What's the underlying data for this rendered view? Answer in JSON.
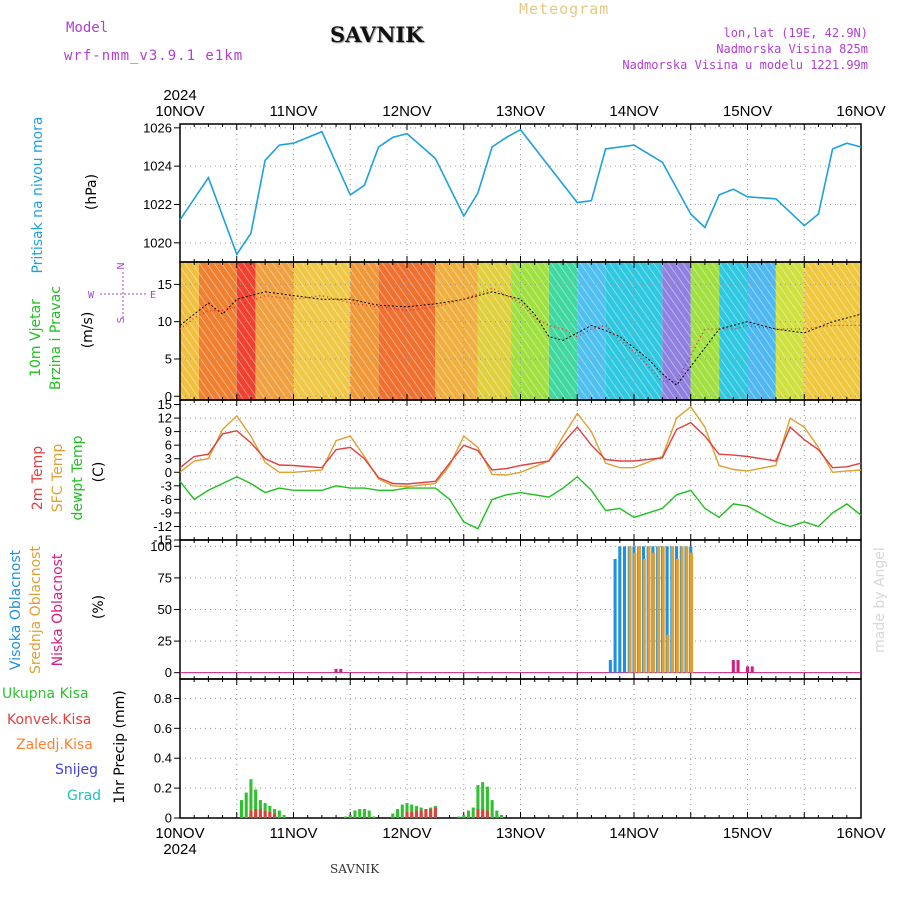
{
  "header": {
    "model_label": "Model",
    "model_name": "wrf-nmm_v3.9.1  e1km",
    "station": "SAVNIK",
    "title": "Meteogram",
    "coords": "lon,lat (19E, 42.9N)",
    "elevation": "Nadmorska Visina 825m",
    "model_elevation": "Nadmorska Visina u modelu 1221.99m"
  },
  "footer": {
    "station": "SAVNIK",
    "credit": "made by Angel",
    "year": "2024"
  },
  "time_axis": {
    "labels": [
      "10NOV",
      "11NOV",
      "12NOV",
      "13NOV",
      "14NOV",
      "15NOV",
      "16NOV"
    ]
  },
  "panels": {
    "pressure": {
      "labels": [
        "Pritisak na nivou mora",
        "(hPa)"
      ]
    },
    "wind": {
      "labels": [
        "10m Vjetar",
        "Brzina i Pravac",
        "(m/s)"
      ],
      "compass": {
        "w": "W",
        "e": "E",
        "n": "N",
        "s": "S"
      }
    },
    "temp": {
      "labels": [
        "2m Temp",
        "SFC Temp",
        "dewpt Temp",
        "(C)"
      ]
    },
    "cloud": {
      "labels": [
        "Visoka Oblacnost",
        "Srednja Oblacnost",
        "Niska Oblacnost",
        "(%)"
      ]
    },
    "precip": {
      "labels": [
        "Ukupna Kisa",
        "Konvek.Kisa",
        "Zaledj.Kisa",
        "Snijeg",
        "Grad",
        "1hr Precip (mm)"
      ]
    }
  },
  "colors": {
    "pressure": "#1ea0e0",
    "t2m": "#e04040",
    "tsfc": "#e0a030",
    "dew": "#20c020",
    "high_cloud": "#1e90e0",
    "mid_cloud": "#e0a030",
    "low_cloud": "#d02080",
    "total_rain": "#30c030",
    "conv_rain": "#e04040",
    "frz_rain": "#ff8030",
    "snow": "#4040e0",
    "hail": "#20c0c0"
  },
  "chart_data": [
    {
      "type": "line",
      "title": "Pritisak na nivou mora",
      "ylabel": "(hPa)",
      "ylim": [
        1019,
        1026.2
      ],
      "yticks": [
        1020,
        1022,
        1024,
        1026
      ],
      "x": [
        0,
        6,
        12,
        15,
        18,
        21,
        24,
        30,
        36,
        39,
        42,
        45,
        48,
        54,
        60,
        63,
        66,
        69,
        72,
        78,
        84,
        87,
        90,
        93,
        96,
        102,
        108,
        111,
        114,
        117,
        120,
        126,
        132,
        135,
        138,
        141,
        144
      ],
      "series": [
        {
          "values": [
            1021.2,
            1023.4,
            1019.4,
            1020.5,
            1024.3,
            1025.1,
            1025.2,
            1025.8,
            1022.5,
            1023,
            1025,
            1025.5,
            1025.7,
            1024.4,
            1021.4,
            1022.6,
            1025,
            1025.5,
            1025.9,
            1024,
            1022.1,
            1022.2,
            1024.9,
            1025,
            1025.1,
            1024.2,
            1021.5,
            1020.8,
            1022.5,
            1022.8,
            1022.4,
            1022.3,
            1020.9,
            1021.5,
            1024.9,
            1025.2,
            1025
          ]
        }
      ]
    },
    {
      "type": "line",
      "title": "10m Vjetar Brzina i Pravac",
      "ylabel": "(m/s)",
      "ylim": [
        -0.5,
        18
      ],
      "yticks": [
        0,
        5,
        10,
        15
      ],
      "x": [
        0,
        3,
        6,
        9,
        12,
        18,
        24,
        30,
        36,
        42,
        48,
        54,
        60,
        66,
        72,
        75,
        78,
        81,
        84,
        87,
        90,
        93,
        96,
        99,
        102,
        105,
        108,
        111,
        114,
        117,
        120,
        126,
        132,
        138,
        144
      ],
      "series": [
        {
          "values": [
            9.5,
            11,
            12.5,
            11,
            13,
            14,
            13.5,
            13,
            13,
            12.2,
            12,
            12.4,
            13,
            14,
            13,
            11,
            8,
            7.5,
            8.5,
            9.5,
            8.8,
            8,
            6.5,
            5,
            3,
            1.5,
            4,
            6.5,
            9,
            9.5,
            10,
            9,
            8.5,
            10,
            11
          ]
        },
        {
          "values": [
            9,
            10.5,
            11.5,
            11.5,
            12,
            13.5,
            13,
            13.5,
            12.5,
            12,
            11.5,
            12,
            13,
            14.5,
            12.5,
            10.5,
            9.5,
            9,
            8,
            9,
            9.5,
            7.5,
            6,
            4,
            2,
            2,
            5.5,
            9,
            9,
            9,
            9.5,
            9,
            9,
            9.5,
            9.5
          ]
        }
      ]
    },
    {
      "type": "line",
      "title": "",
      "ylabel": "(C)",
      "ylim": [
        -15,
        16
      ],
      "yticks": [
        -15,
        -12,
        -9,
        -6,
        -3,
        0,
        3,
        6,
        9,
        12,
        15
      ],
      "x": [
        0,
        3,
        6,
        9,
        12,
        15,
        18,
        21,
        24,
        30,
        33,
        36,
        39,
        42,
        45,
        48,
        54,
        57,
        60,
        63,
        66,
        69,
        72,
        78,
        81,
        84,
        87,
        90,
        93,
        96,
        102,
        105,
        108,
        111,
        114,
        117,
        120,
        126,
        129,
        132,
        135,
        138,
        141,
        144
      ],
      "series": [
        {
          "values": [
            1,
            3.5,
            4,
            8.5,
            9.2,
            6.5,
            3,
            1.6,
            1.5,
            1,
            5,
            5.5,
            3,
            -1.2,
            -2.5,
            -2.6,
            -2,
            2,
            6,
            4.8,
            0.5,
            0.8,
            1.5,
            2.5,
            6.5,
            10,
            6,
            2.8,
            2.5,
            2.5,
            3.2,
            9.5,
            11,
            8,
            4,
            3.8,
            3.5,
            2.5,
            10,
            7.2,
            5,
            1,
            1.2,
            2
          ]
        },
        {
          "values": [
            0,
            2.5,
            3,
            9.5,
            12.5,
            8,
            2.2,
            0,
            0,
            0.5,
            7,
            8,
            3.5,
            -1.5,
            -3,
            -3.2,
            -2.5,
            1.5,
            8,
            5.5,
            -0.5,
            -0.6,
            0,
            2.5,
            8,
            13,
            9,
            2,
            1,
            1,
            3.5,
            12,
            14.5,
            10,
            1.5,
            0.6,
            0.3,
            1.5,
            12,
            10,
            5.5,
            0,
            0.3,
            0.5
          ]
        },
        {
          "values": [
            -2,
            -6,
            -4,
            -2.5,
            -1,
            -2.5,
            -4.5,
            -3.5,
            -4,
            -4,
            -3,
            -3.5,
            -3.5,
            -4,
            -4,
            -3.5,
            -3.5,
            -6,
            -11,
            -12.5,
            -6,
            -5,
            -4.5,
            -5.5,
            -3.5,
            -1,
            -4,
            -8.5,
            -8,
            -10,
            -8,
            -5,
            -4,
            -8,
            -10,
            -7,
            -7.5,
            -11,
            -12,
            -11,
            -12,
            -9,
            -7,
            -9.5
          ]
        }
      ]
    },
    {
      "type": "bar",
      "title": "Oblacnost",
      "ylabel": "(%)",
      "ylim": [
        -5,
        105
      ],
      "yticks": [
        0,
        25,
        50,
        75,
        100
      ],
      "series": [
        {
          "name": "Visoka Oblacnost",
          "x": [
            91,
            92,
            93,
            94,
            95,
            96,
            97,
            98,
            99,
            100,
            101,
            102,
            103,
            104,
            105,
            106,
            107,
            108
          ],
          "values": [
            10,
            90,
            100,
            100,
            100,
            100,
            100,
            100,
            100,
            100,
            100,
            100,
            100,
            100,
            100,
            100,
            100,
            100
          ]
        },
        {
          "name": "Srednja Oblacnost",
          "x": [
            94,
            95,
            96,
            97,
            98,
            99,
            100,
            101,
            102,
            103,
            104,
            105,
            106,
            107,
            108
          ],
          "values": [
            0,
            100,
            95,
            100,
            90,
            100,
            95,
            100,
            100,
            30,
            100,
            90,
            100,
            100,
            95
          ]
        },
        {
          "name": "Niska Oblacnost",
          "x": [
            33,
            34,
            117,
            118,
            120,
            121
          ],
          "values": [
            3,
            3,
            10,
            10,
            5,
            5
          ]
        }
      ]
    },
    {
      "type": "bar",
      "title": "1hr Precip",
      "ylabel": "1hr Precip (mm)",
      "ylim": [
        0,
        0.93
      ],
      "yticks": [
        0,
        0.2,
        0.4,
        0.6,
        0.8
      ],
      "series": [
        {
          "name": "Ukupna Kisa",
          "x": [
            13,
            14,
            15,
            16,
            17,
            18,
            19,
            20,
            21,
            22,
            23,
            24,
            25,
            26,
            27,
            28,
            30,
            31,
            32,
            33,
            34,
            35,
            36,
            37,
            38,
            39,
            40,
            41,
            42,
            43,
            44,
            45,
            46,
            47,
            48,
            49,
            50,
            51,
            52,
            53,
            54,
            55,
            56,
            57,
            58,
            59,
            60,
            61,
            62,
            63,
            64,
            65,
            66,
            67,
            68,
            69,
            70,
            71,
            72
          ],
          "values": [
            0.12,
            0.17,
            0.26,
            0.19,
            0.12,
            0.1,
            0.08,
            0.06,
            0.05,
            0.02,
            0.0,
            0.0,
            0.0,
            0.0,
            0.0,
            0.0,
            0.0,
            0.0,
            0.0,
            0.0,
            0.0,
            0.01,
            0.02,
            0.05,
            0.06,
            0.06,
            0.05,
            0.01,
            0.0,
            0.0,
            0.0,
            0.03,
            0.06,
            0.09,
            0.1,
            0.09,
            0.08,
            0.07,
            0.06,
            0.07,
            0.08,
            0.0,
            0.0,
            0.0,
            0.0,
            0.01,
            0.02,
            0.05,
            0.07,
            0.22,
            0.24,
            0.21,
            0.12,
            0.05,
            0.02,
            0.0,
            0.0,
            0.0,
            0.0
          ]
        },
        {
          "name": "Konvek.Kisa",
          "x": [
            15,
            16,
            17,
            18,
            19,
            20,
            48,
            49,
            50,
            51,
            52,
            53,
            54,
            63,
            64,
            65
          ],
          "values": [
            0.05,
            0.06,
            0.06,
            0.05,
            0.04,
            0.03,
            0.04,
            0.04,
            0.05,
            0.05,
            0.06,
            0.06,
            0.07,
            0.06,
            0.06,
            0.05
          ]
        },
        {
          "name": "Zaledj.Kisa",
          "x": [],
          "values": []
        },
        {
          "name": "Snijeg",
          "x": [],
          "values": []
        },
        {
          "name": "Grad",
          "x": [],
          "values": []
        }
      ]
    }
  ]
}
